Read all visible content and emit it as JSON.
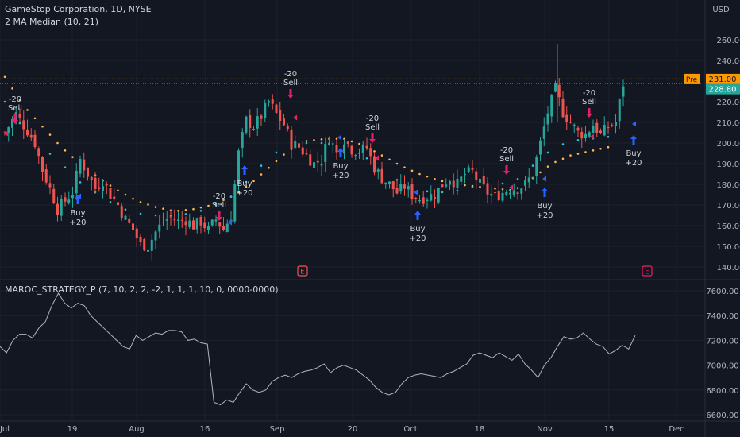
{
  "header": {
    "symbol": "GameStop Corporation, 1D, NYSE",
    "indicator": "2 MA Median (10, 21)",
    "strategy": "MAROC_STRATEGY_P (7, 10, 2, 2, -2, 1, 1, 1, 10, 0, 0000-0000)"
  },
  "currency": "USD",
  "colors": {
    "bg": "#131722",
    "up": "#26a69a",
    "down": "#ef5350",
    "grid": "#1e222d",
    "text": "#b2b5be",
    "buy": "#2962ff",
    "sell": "#e91e63",
    "orangeDot": "#ffb74d",
    "tealDot": "#26c6da",
    "line": "#b2b5be"
  },
  "chart_data": [
    {
      "type": "candlestick",
      "y_ticks": [
        140,
        150,
        160,
        170,
        180,
        190,
        200,
        210,
        220,
        240,
        260
      ],
      "ylim": [
        135,
        266
      ],
      "x_tick_labels": [
        "Jul",
        "19",
        "Aug",
        "16",
        "Sep",
        "20",
        "Oct",
        "18",
        "Nov",
        "15",
        "Dec"
      ],
      "price_tags": {
        "pre_label": "Pre",
        "pre_value": "231.00",
        "last_value": "228.80"
      },
      "earnings_label": "E",
      "signals": [
        {
          "label1": "-20",
          "label2": "Sell",
          "kind": "sell"
        },
        {
          "label1": "Buy",
          "label2": "+20",
          "kind": "buy"
        },
        {
          "label1": "-20",
          "label2": "Sell",
          "kind": "sell"
        },
        {
          "label1": "Buy",
          "label2": "+20",
          "kind": "buy"
        },
        {
          "label1": "-20",
          "label2": "Sell",
          "kind": "sell"
        },
        {
          "label1": "Buy",
          "label2": "+20",
          "kind": "buy"
        },
        {
          "label1": "-20",
          "label2": "Sell",
          "kind": "sell"
        },
        {
          "label1": "Buy",
          "label2": "+20",
          "kind": "buy"
        },
        {
          "label1": "-20",
          "label2": "Sell",
          "kind": "sell"
        },
        {
          "label1": "Buy",
          "label2": "+20",
          "kind": "buy"
        },
        {
          "label1": "-20",
          "label2": "Sell",
          "kind": "sell"
        },
        {
          "label1": "Buy",
          "label2": "+20",
          "kind": "buy"
        }
      ],
      "close_path": [
        [
          0,
          205
        ],
        [
          3,
          214
        ],
        [
          6,
          206
        ],
        [
          8,
          200
        ],
        [
          10,
          187
        ],
        [
          12,
          178
        ],
        [
          14,
          168
        ],
        [
          16,
          172
        ],
        [
          18,
          176
        ],
        [
          20,
          192
        ],
        [
          22,
          185
        ],
        [
          24,
          178
        ],
        [
          26,
          182
        ],
        [
          28,
          175
        ],
        [
          30,
          170
        ],
        [
          32,
          163
        ],
        [
          34,
          158
        ],
        [
          36,
          151
        ],
        [
          38,
          150
        ],
        [
          40,
          157
        ],
        [
          42,
          162
        ],
        [
          44,
          164
        ],
        [
          46,
          162
        ],
        [
          48,
          163
        ],
        [
          50,
          160
        ],
        [
          52,
          162
        ],
        [
          54,
          158
        ],
        [
          56,
          163
        ],
        [
          58,
          158
        ],
        [
          60,
          165
        ],
        [
          62,
          195
        ],
        [
          64,
          211
        ],
        [
          66,
          208
        ],
        [
          68,
          213
        ],
        [
          70,
          220
        ],
        [
          72,
          214
        ],
        [
          74,
          209
        ],
        [
          76,
          200
        ],
        [
          78,
          198
        ],
        [
          80,
          194
        ],
        [
          82,
          190
        ],
        [
          84,
          192
        ],
        [
          86,
          203
        ],
        [
          88,
          195
        ],
        [
          90,
          202
        ],
        [
          92,
          197
        ],
        [
          94,
          196
        ],
        [
          96,
          198
        ],
        [
          98,
          188
        ],
        [
          100,
          183
        ],
        [
          102,
          180
        ],
        [
          104,
          176
        ],
        [
          106,
          179
        ],
        [
          108,
          175
        ],
        [
          110,
          173
        ],
        [
          112,
          174
        ],
        [
          114,
          175
        ],
        [
          116,
          180
        ],
        [
          118,
          183
        ],
        [
          120,
          180
        ],
        [
          122,
          185
        ],
        [
          124,
          186
        ],
        [
          126,
          180
        ],
        [
          128,
          176
        ],
        [
          130,
          174
        ],
        [
          132,
          176
        ],
        [
          134,
          178
        ],
        [
          136,
          178
        ],
        [
          138,
          180
        ],
        [
          140,
          185
        ],
        [
          142,
          200
        ],
        [
          144,
          215
        ],
        [
          146,
          226
        ],
        [
          148,
          215
        ],
        [
          150,
          210
        ],
        [
          152,
          205
        ],
        [
          154,
          204
        ],
        [
          156,
          209
        ],
        [
          158,
          204
        ],
        [
          160,
          208
        ],
        [
          162,
          210
        ],
        [
          164,
          228.8
        ]
      ],
      "ma_orange_path": [
        [
          0,
          232
        ],
        [
          5,
          218
        ],
        [
          10,
          208
        ],
        [
          15,
          198
        ],
        [
          20,
          190
        ],
        [
          25,
          183
        ],
        [
          30,
          177
        ],
        [
          35,
          172
        ],
        [
          40,
          169
        ],
        [
          45,
          167
        ],
        [
          50,
          168
        ],
        [
          55,
          170
        ],
        [
          60,
          174
        ],
        [
          65,
          180
        ],
        [
          70,
          188
        ],
        [
          75,
          196
        ],
        [
          80,
          201
        ],
        [
          85,
          202
        ],
        [
          90,
          202
        ],
        [
          95,
          199
        ],
        [
          100,
          194
        ],
        [
          105,
          189
        ],
        [
          110,
          185
        ],
        [
          115,
          182
        ],
        [
          120,
          180
        ],
        [
          125,
          179
        ],
        [
          130,
          178
        ],
        [
          135,
          177
        ],
        [
          140,
          183
        ],
        [
          145,
          190
        ],
        [
          150,
          194
        ],
        [
          155,
          196
        ],
        [
          160,
          198
        ]
      ],
      "ma_teal_path": [
        [
          0,
          220
        ],
        [
          5,
          207
        ],
        [
          10,
          198
        ],
        [
          15,
          190
        ],
        [
          20,
          181
        ],
        [
          25,
          175
        ],
        [
          30,
          169
        ],
        [
          35,
          166
        ],
        [
          40,
          165
        ],
        [
          45,
          165
        ],
        [
          50,
          166
        ],
        [
          55,
          169
        ],
        [
          60,
          174
        ],
        [
          65,
          183
        ],
        [
          70,
          193
        ],
        [
          75,
          199
        ],
        [
          80,
          200
        ],
        [
          85,
          200
        ],
        [
          90,
          198
        ],
        [
          95,
          194
        ],
        [
          100,
          187
        ],
        [
          105,
          181
        ],
        [
          110,
          177
        ],
        [
          115,
          176
        ],
        [
          120,
          177
        ],
        [
          125,
          179
        ],
        [
          130,
          180
        ],
        [
          135,
          181
        ],
        [
          140,
          189
        ],
        [
          145,
          197
        ],
        [
          150,
          201
        ],
        [
          155,
          202
        ],
        [
          160,
          203
        ]
      ]
    },
    {
      "type": "line",
      "y_ticks": [
        6600,
        6800,
        7000,
        7200,
        7400,
        7600
      ],
      "ylim": [
        6560,
        7660
      ],
      "values": [
        7150,
        7100,
        7200,
        7250,
        7250,
        7220,
        7300,
        7350,
        7480,
        7580,
        7500,
        7460,
        7500,
        7480,
        7400,
        7350,
        7300,
        7250,
        7200,
        7150,
        7130,
        7240,
        7200,
        7230,
        7260,
        7250,
        7280,
        7280,
        7270,
        7200,
        7210,
        7180,
        7170,
        6700,
        6680,
        6720,
        6700,
        6780,
        6850,
        6800,
        6780,
        6800,
        6870,
        6900,
        6920,
        6900,
        6930,
        6950,
        6960,
        6980,
        7010,
        6940,
        6980,
        7000,
        6980,
        6960,
        6920,
        6880,
        6820,
        6780,
        6760,
        6780,
        6850,
        6900,
        6920,
        6930,
        6920,
        6910,
        6900,
        6930,
        6950,
        6980,
        7010,
        7080,
        7100,
        7080,
        7060,
        7100,
        7070,
        7040,
        7090,
        7010,
        6960,
        6900,
        7000,
        7060,
        7150,
        7230,
        7210,
        7220,
        7260,
        7210,
        7170,
        7150,
        7090,
        7120,
        7160,
        7130,
        7240
      ]
    }
  ]
}
